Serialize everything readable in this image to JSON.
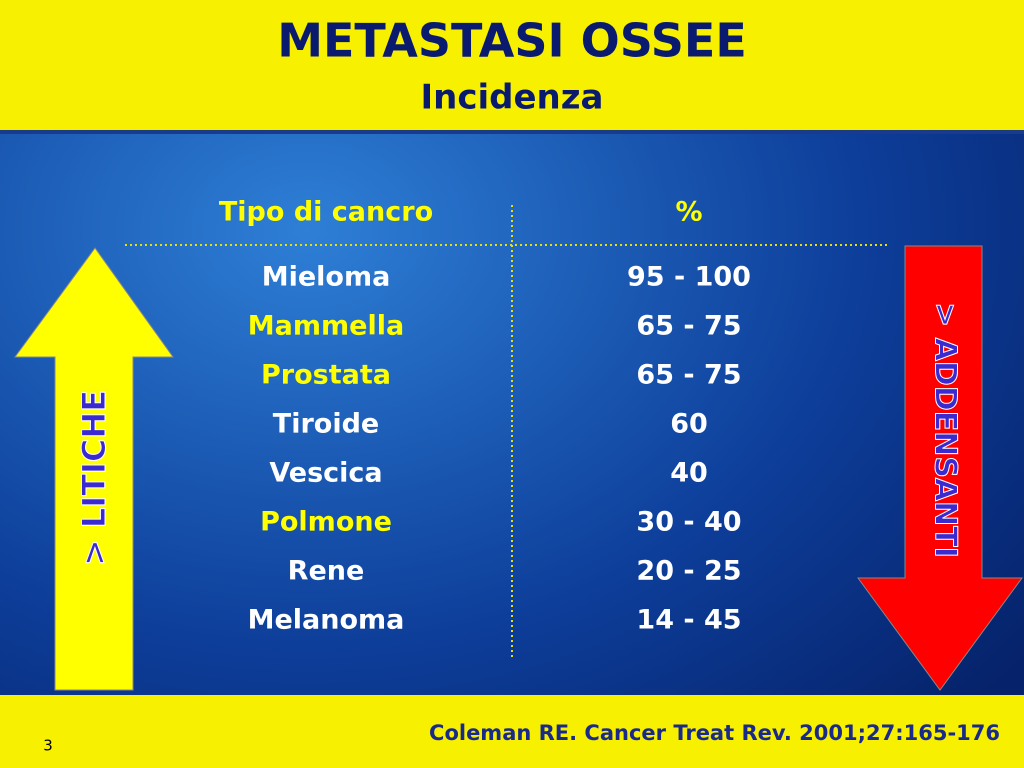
{
  "header": {
    "title": "METASTASI OSSEE",
    "subtitle": "Incidenza"
  },
  "table": {
    "headers": [
      "Tipo di cancro",
      "%"
    ],
    "rows": [
      {
        "tipo": "Mieloma",
        "percent": "95 - 100",
        "color": "#ffffff"
      },
      {
        "tipo": "Mammella",
        "percent": "65 - 75",
        "color": "#ffff00"
      },
      {
        "tipo": "Prostata",
        "percent": "65 - 75",
        "color": "#ffff00"
      },
      {
        "tipo": "Tiroide",
        "percent": "60",
        "color": "#ffffff"
      },
      {
        "tipo": "Vescica",
        "percent": "40",
        "color": "#ffffff"
      },
      {
        "tipo": "Polmone",
        "percent": "30 - 40",
        "color": "#ffff00"
      },
      {
        "tipo": "Rene",
        "percent": "20 - 25",
        "color": "#ffffff"
      },
      {
        "tipo": "Melanoma",
        "percent": "14 - 45",
        "color": "#ffffff"
      }
    ]
  },
  "arrows": {
    "left": "> LITICHE",
    "right": "> ADDENSANTI"
  },
  "footer": {
    "citation": "Coleman RE. Cancer Treat Rev. 2001;27:165-176",
    "page": "3"
  }
}
